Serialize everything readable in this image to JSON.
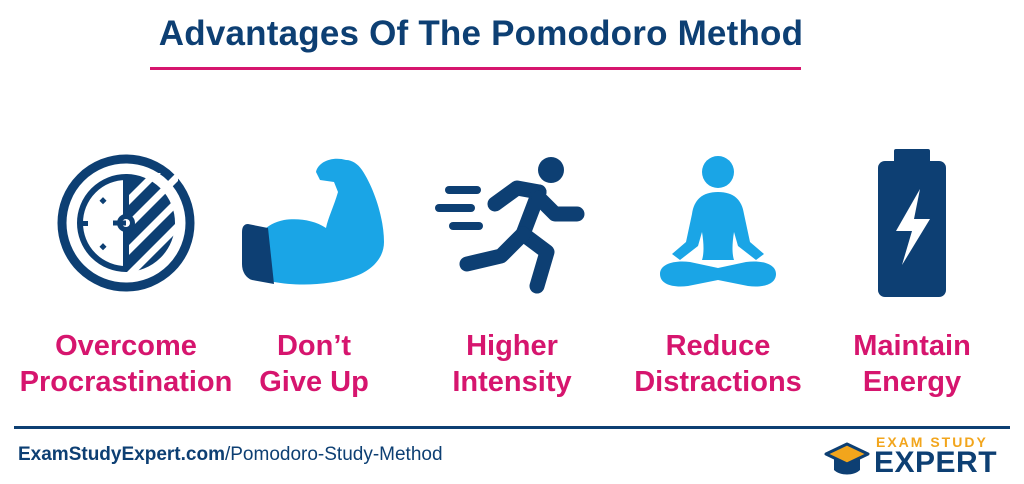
{
  "title": "Advantages Of The Pomodoro Method",
  "colors": {
    "navy": "#0d3f73",
    "light_blue": "#1aa5e6",
    "magenta": "#d6156e",
    "gold": "#f2a51c"
  },
  "items": [
    {
      "icon": "clock-icon",
      "line1": "Overcome",
      "line2": "Procrastination"
    },
    {
      "icon": "flexed-arm-icon",
      "line1": "Don’t",
      "line2": "Give Up"
    },
    {
      "icon": "running-person-icon",
      "line1": "Higher",
      "line2": "Intensity"
    },
    {
      "icon": "meditation-icon",
      "line1": "Reduce",
      "line2": "Distractions"
    },
    {
      "icon": "battery-icon",
      "line1": "Maintain",
      "line2": "Energy"
    }
  ],
  "footer": {
    "url_domain": "ExamStudyExpert.com",
    "url_path": "/Pomodoro-Study-Method"
  },
  "logo": {
    "small_text": "EXAM STUDY",
    "big_text": "EXPERT"
  }
}
